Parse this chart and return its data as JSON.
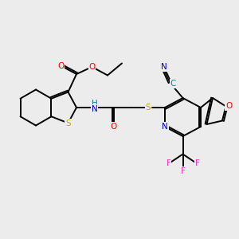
{
  "bg_color": "#ececec",
  "bond_color": "#000000",
  "bond_width": 1.4,
  "atom_colors": {
    "O": "#ff0000",
    "N": "#0000cc",
    "S": "#bbaa00",
    "F": "#ff33cc",
    "C_cyan": "#008888",
    "H": "#008888"
  },
  "font_size": 7.5
}
